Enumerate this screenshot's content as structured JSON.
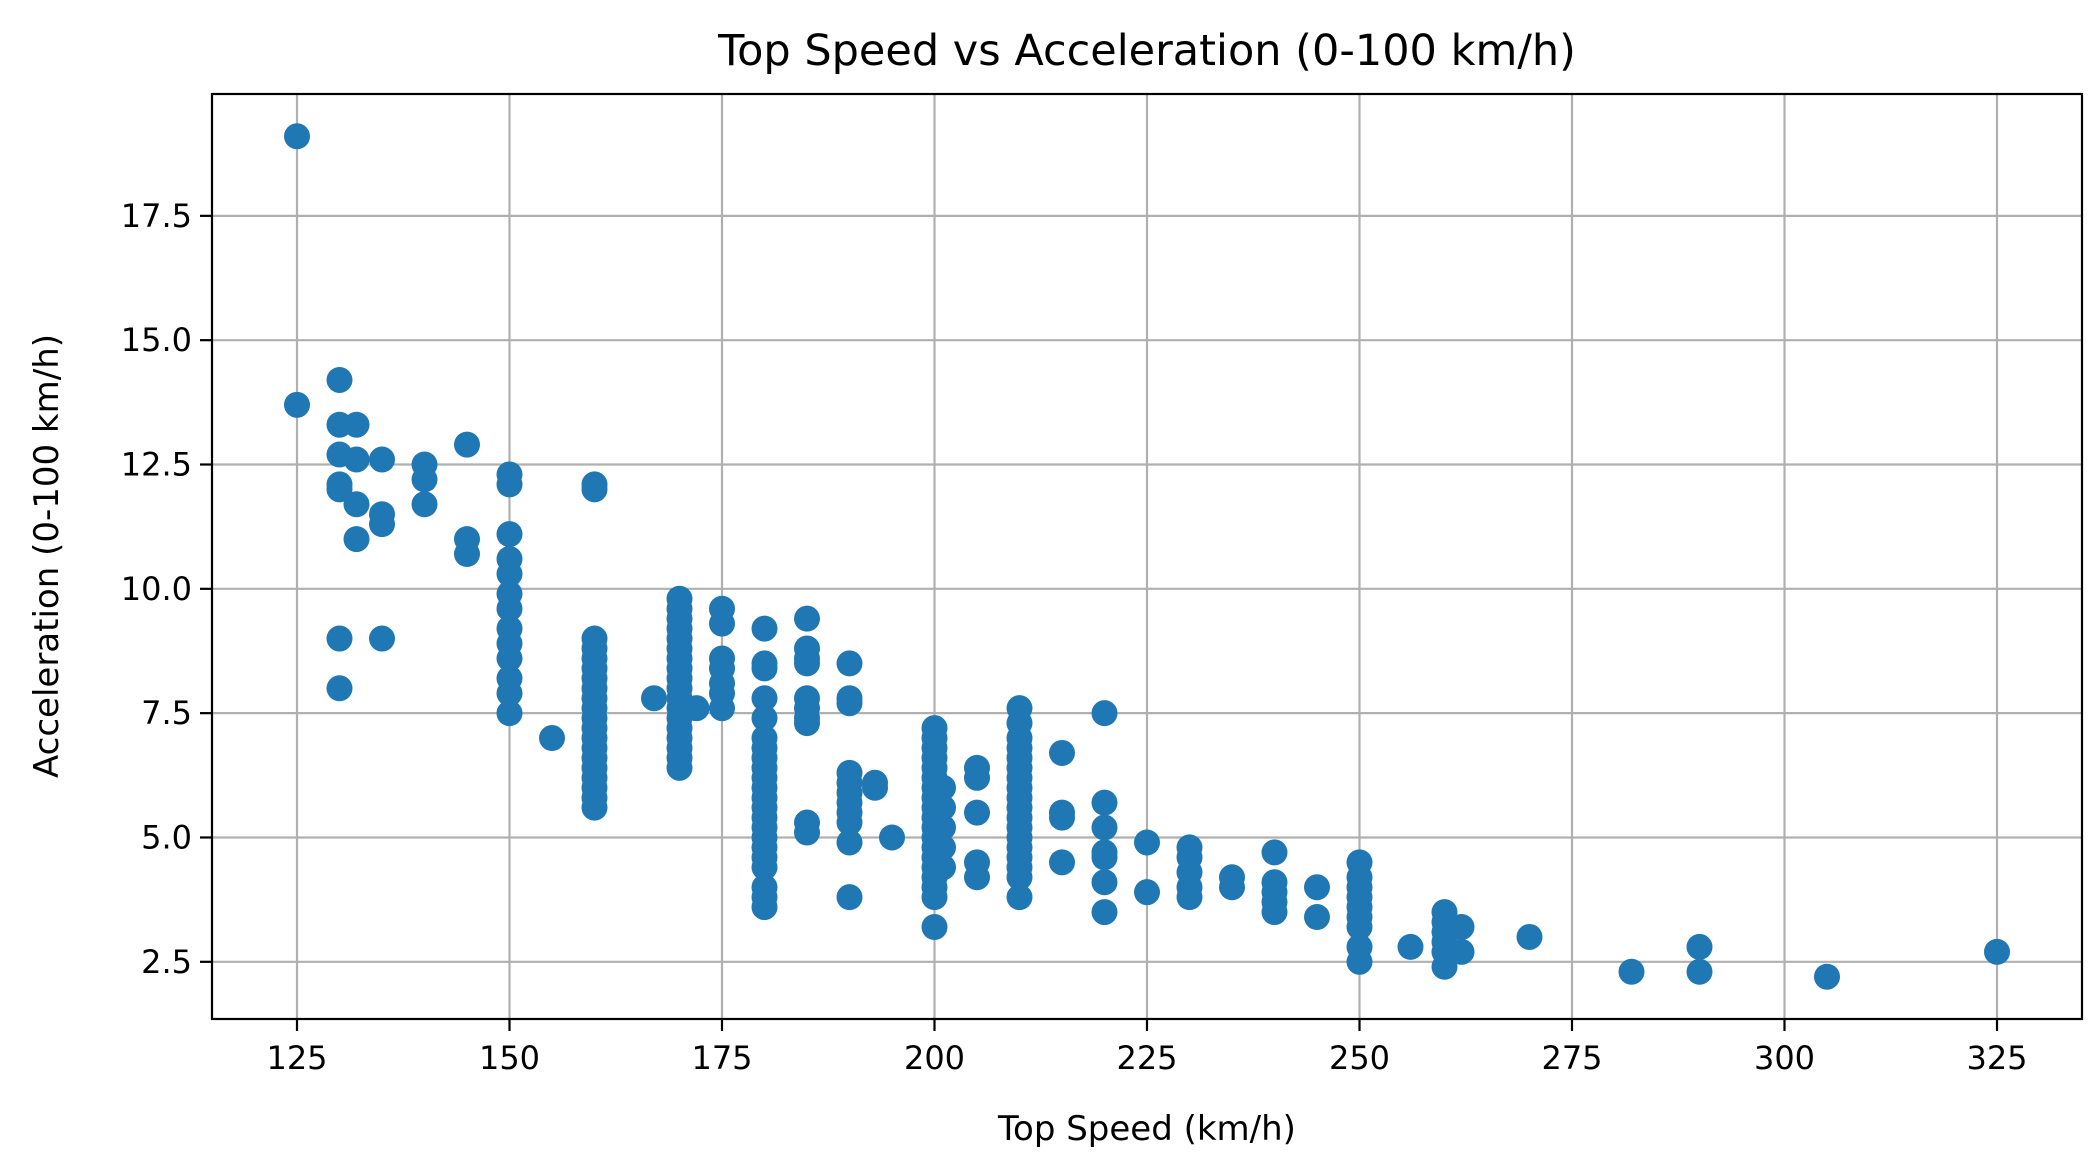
{
  "chart_data": {
    "type": "scatter",
    "title": "Top Speed vs Acceleration (0-100 km/h)",
    "xlabel": "Top Speed (km/h)",
    "ylabel": "Acceleration (0-100 km/h)",
    "xlim": [
      115,
      335
    ],
    "ylim": [
      1.35,
      19.95
    ],
    "xticks": [
      125,
      150,
      175,
      200,
      225,
      250,
      275,
      300,
      325
    ],
    "xtick_labels": [
      "125",
      "150",
      "175",
      "200",
      "225",
      "250",
      "275",
      "300",
      "325"
    ],
    "yticks": [
      2.5,
      5.0,
      7.5,
      10.0,
      12.5,
      15.0,
      17.5
    ],
    "ytick_labels": [
      "2.5",
      "5.0",
      "7.5",
      "10.0",
      "12.5",
      "15.0",
      "17.5"
    ],
    "grid": true,
    "legend": "none",
    "marker_color": "#1f77b4",
    "points": [
      [
        125,
        19.1
      ],
      [
        125,
        13.7
      ],
      [
        130,
        14.2
      ],
      [
        130,
        13.3
      ],
      [
        130,
        12.7
      ],
      [
        130,
        12.1
      ],
      [
        130,
        12.0
      ],
      [
        130,
        9.0
      ],
      [
        130,
        8.0
      ],
      [
        132,
        13.3
      ],
      [
        132,
        12.6
      ],
      [
        132,
        11.7
      ],
      [
        132,
        11.0
      ],
      [
        135,
        12.6
      ],
      [
        135,
        11.5
      ],
      [
        135,
        11.3
      ],
      [
        135,
        9.0
      ],
      [
        140,
        12.5
      ],
      [
        140,
        12.2
      ],
      [
        140,
        11.7
      ],
      [
        145,
        12.9
      ],
      [
        145,
        11.0
      ],
      [
        145,
        10.7
      ],
      [
        150,
        12.3
      ],
      [
        150,
        12.1
      ],
      [
        150,
        11.1
      ],
      [
        150,
        10.6
      ],
      [
        150,
        10.3
      ],
      [
        150,
        9.9
      ],
      [
        150,
        9.6
      ],
      [
        150,
        9.2
      ],
      [
        150,
        8.9
      ],
      [
        150,
        8.6
      ],
      [
        150,
        8.2
      ],
      [
        150,
        7.9
      ],
      [
        150,
        7.5
      ],
      [
        155,
        7.0
      ],
      [
        160,
        12.1
      ],
      [
        160,
        12.0
      ],
      [
        160,
        9.0
      ],
      [
        160,
        8.8
      ],
      [
        160,
        8.6
      ],
      [
        160,
        8.4
      ],
      [
        160,
        8.2
      ],
      [
        160,
        8.0
      ],
      [
        160,
        7.8
      ],
      [
        160,
        7.6
      ],
      [
        160,
        7.4
      ],
      [
        160,
        7.2
      ],
      [
        160,
        7.0
      ],
      [
        160,
        6.8
      ],
      [
        160,
        6.6
      ],
      [
        160,
        6.4
      ],
      [
        160,
        6.2
      ],
      [
        160,
        6.0
      ],
      [
        160,
        5.8
      ],
      [
        160,
        5.6
      ],
      [
        167,
        7.8
      ],
      [
        170,
        9.8
      ],
      [
        170,
        9.6
      ],
      [
        170,
        9.4
      ],
      [
        170,
        9.2
      ],
      [
        170,
        9.0
      ],
      [
        170,
        8.8
      ],
      [
        170,
        8.6
      ],
      [
        170,
        8.4
      ],
      [
        170,
        8.2
      ],
      [
        170,
        8.0
      ],
      [
        170,
        7.8
      ],
      [
        170,
        7.6
      ],
      [
        170,
        7.4
      ],
      [
        170,
        7.2
      ],
      [
        170,
        7.0
      ],
      [
        170,
        6.8
      ],
      [
        170,
        6.6
      ],
      [
        170,
        6.4
      ],
      [
        172,
        7.6
      ],
      [
        175,
        9.6
      ],
      [
        175,
        9.3
      ],
      [
        175,
        8.6
      ],
      [
        175,
        8.4
      ],
      [
        175,
        8.1
      ],
      [
        175,
        7.9
      ],
      [
        175,
        7.6
      ],
      [
        180,
        9.2
      ],
      [
        180,
        8.5
      ],
      [
        180,
        8.4
      ],
      [
        180,
        7.8
      ],
      [
        180,
        7.4
      ],
      [
        180,
        7.0
      ],
      [
        180,
        6.8
      ],
      [
        180,
        6.6
      ],
      [
        180,
        6.4
      ],
      [
        180,
        6.2
      ],
      [
        180,
        6.0
      ],
      [
        180,
        5.8
      ],
      [
        180,
        5.6
      ],
      [
        180,
        5.4
      ],
      [
        180,
        5.2
      ],
      [
        180,
        5.0
      ],
      [
        180,
        4.8
      ],
      [
        180,
        4.6
      ],
      [
        180,
        4.4
      ],
      [
        180,
        4.0
      ],
      [
        180,
        3.8
      ],
      [
        180,
        3.6
      ],
      [
        185,
        9.4
      ],
      [
        185,
        8.8
      ],
      [
        185,
        8.6
      ],
      [
        185,
        8.5
      ],
      [
        185,
        7.8
      ],
      [
        185,
        7.6
      ],
      [
        185,
        7.4
      ],
      [
        185,
        7.3
      ],
      [
        185,
        5.3
      ],
      [
        185,
        5.1
      ],
      [
        190,
        8.5
      ],
      [
        190,
        7.8
      ],
      [
        190,
        7.7
      ],
      [
        190,
        6.3
      ],
      [
        190,
        6.1
      ],
      [
        190,
        5.9
      ],
      [
        190,
        5.7
      ],
      [
        190,
        5.5
      ],
      [
        190,
        5.3
      ],
      [
        190,
        4.9
      ],
      [
        190,
        3.8
      ],
      [
        193,
        6.1
      ],
      [
        193,
        6.0
      ],
      [
        195,
        5.0
      ],
      [
        200,
        7.2
      ],
      [
        200,
        7.0
      ],
      [
        200,
        6.8
      ],
      [
        200,
        6.6
      ],
      [
        200,
        6.4
      ],
      [
        200,
        6.2
      ],
      [
        200,
        6.0
      ],
      [
        200,
        5.8
      ],
      [
        200,
        5.6
      ],
      [
        200,
        5.4
      ],
      [
        200,
        5.2
      ],
      [
        200,
        5.0
      ],
      [
        200,
        4.8
      ],
      [
        200,
        4.6
      ],
      [
        200,
        4.4
      ],
      [
        200,
        4.2
      ],
      [
        200,
        4.0
      ],
      [
        200,
        3.8
      ],
      [
        200,
        3.2
      ],
      [
        201,
        6.0
      ],
      [
        201,
        5.6
      ],
      [
        201,
        5.2
      ],
      [
        201,
        4.8
      ],
      [
        201,
        4.4
      ],
      [
        205,
        6.4
      ],
      [
        205,
        6.2
      ],
      [
        205,
        5.5
      ],
      [
        205,
        4.5
      ],
      [
        205,
        4.2
      ],
      [
        210,
        7.6
      ],
      [
        210,
        7.3
      ],
      [
        210,
        7.0
      ],
      [
        210,
        6.8
      ],
      [
        210,
        6.6
      ],
      [
        210,
        6.4
      ],
      [
        210,
        6.2
      ],
      [
        210,
        6.0
      ],
      [
        210,
        5.8
      ],
      [
        210,
        5.6
      ],
      [
        210,
        5.4
      ],
      [
        210,
        5.2
      ],
      [
        210,
        5.0
      ],
      [
        210,
        4.8
      ],
      [
        210,
        4.6
      ],
      [
        210,
        4.4
      ],
      [
        210,
        4.2
      ],
      [
        210,
        3.8
      ],
      [
        215,
        6.7
      ],
      [
        215,
        5.5
      ],
      [
        215,
        5.4
      ],
      [
        215,
        4.5
      ],
      [
        220,
        7.5
      ],
      [
        220,
        5.7
      ],
      [
        220,
        5.2
      ],
      [
        220,
        4.7
      ],
      [
        220,
        4.6
      ],
      [
        220,
        4.1
      ],
      [
        220,
        3.5
      ],
      [
        225,
        4.9
      ],
      [
        225,
        3.9
      ],
      [
        230,
        4.8
      ],
      [
        230,
        4.6
      ],
      [
        230,
        4.3
      ],
      [
        230,
        4.0
      ],
      [
        230,
        3.8
      ],
      [
        235,
        4.2
      ],
      [
        235,
        4.0
      ],
      [
        240,
        4.7
      ],
      [
        240,
        4.1
      ],
      [
        240,
        3.9
      ],
      [
        240,
        3.7
      ],
      [
        240,
        3.5
      ],
      [
        245,
        4.0
      ],
      [
        245,
        3.4
      ],
      [
        250,
        4.5
      ],
      [
        250,
        4.2
      ],
      [
        250,
        4.0
      ],
      [
        250,
        3.8
      ],
      [
        250,
        3.6
      ],
      [
        250,
        3.4
      ],
      [
        250,
        3.2
      ],
      [
        250,
        2.8
      ],
      [
        250,
        2.5
      ],
      [
        256,
        2.8
      ],
      [
        260,
        3.5
      ],
      [
        260,
        3.3
      ],
      [
        260,
        3.1
      ],
      [
        260,
        2.9
      ],
      [
        260,
        2.7
      ],
      [
        260,
        2.4
      ],
      [
        262,
        3.2
      ],
      [
        262,
        2.7
      ],
      [
        270,
        3.0
      ],
      [
        282,
        2.3
      ],
      [
        290,
        2.8
      ],
      [
        290,
        2.3
      ],
      [
        305,
        2.2
      ],
      [
        325,
        2.7
      ]
    ]
  }
}
